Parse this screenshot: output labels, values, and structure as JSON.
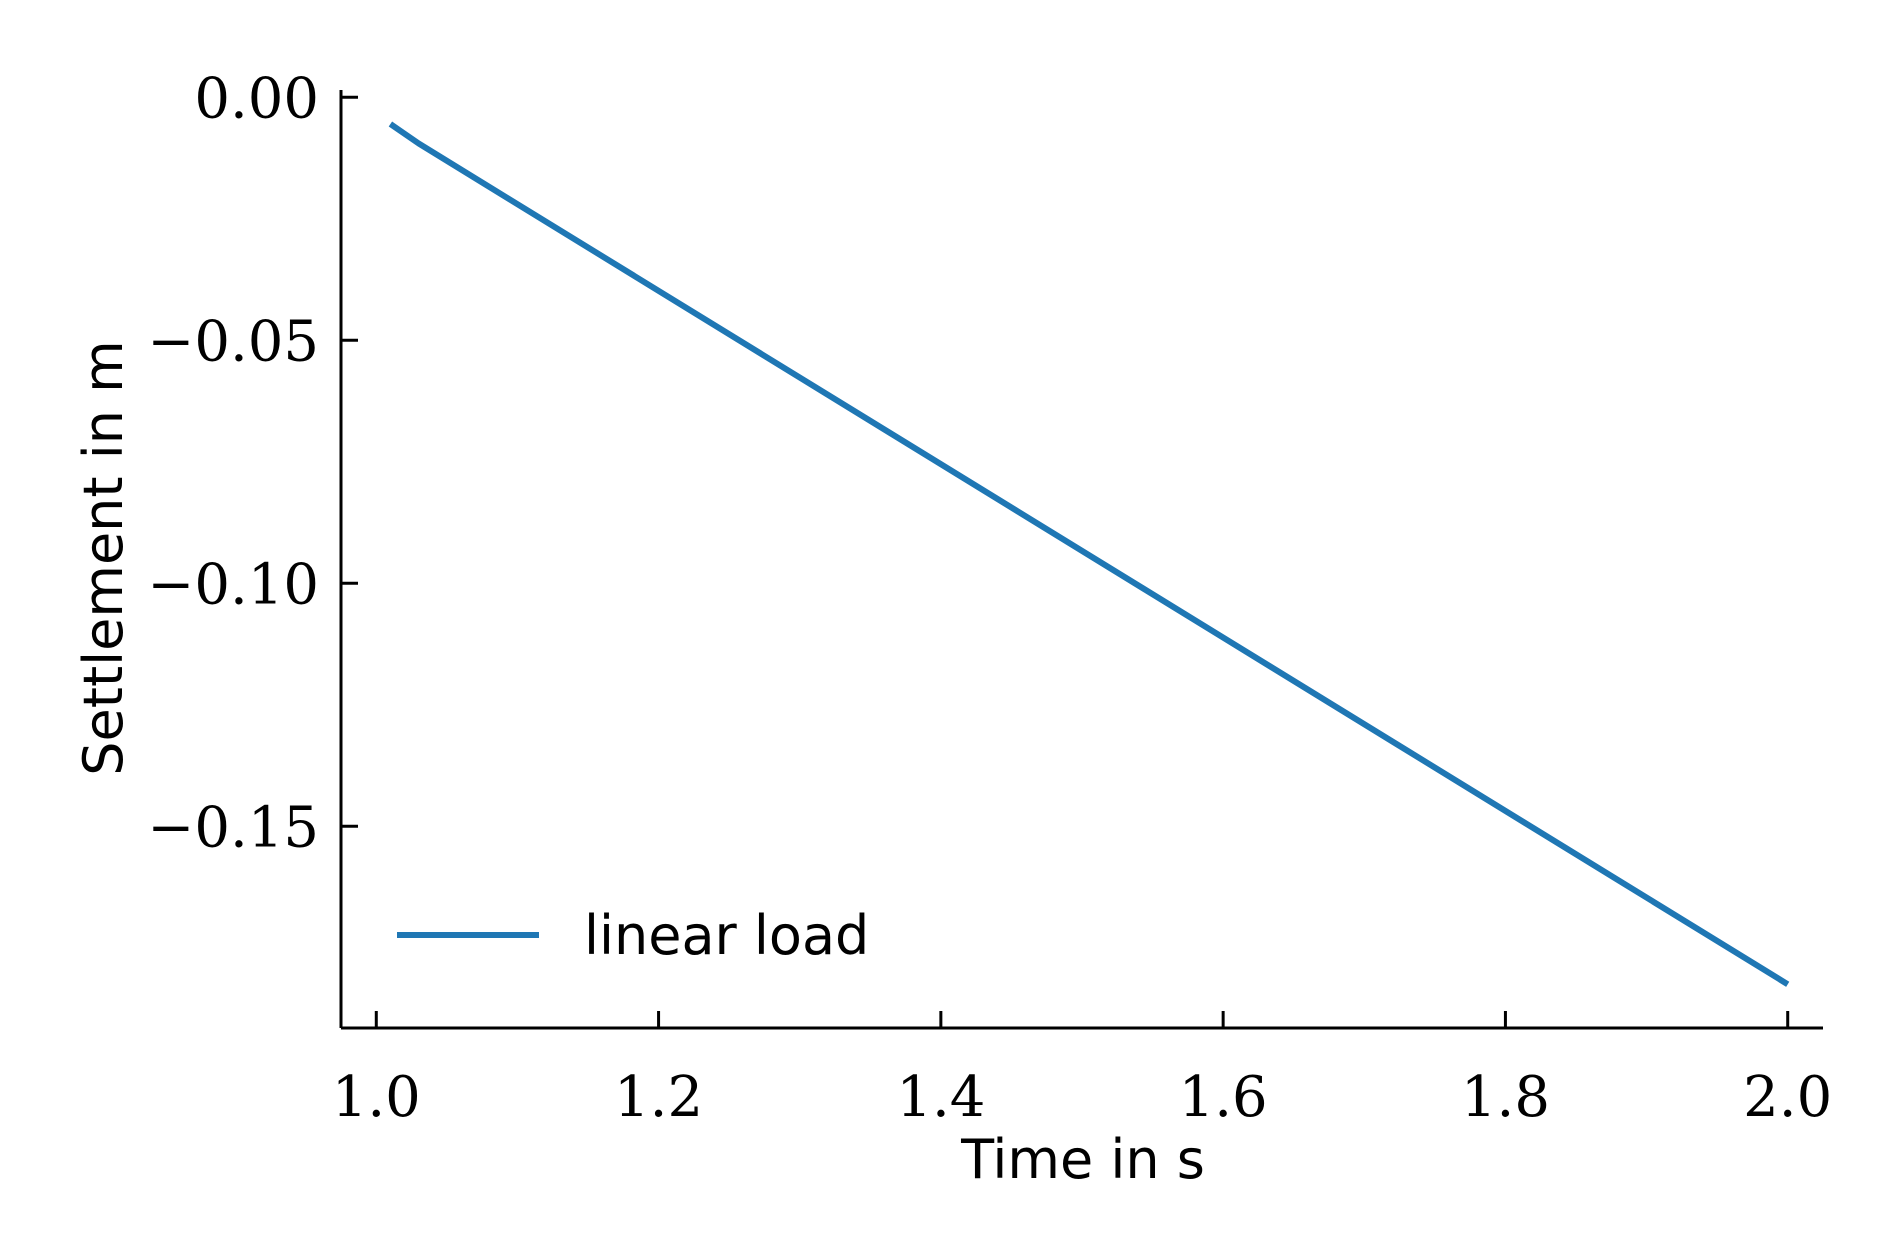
{
  "chart_data": {
    "type": "line",
    "title": "",
    "xlabel": "Time in s",
    "ylabel": "Settlement in m",
    "xlim": [
      0.975,
      2.025
    ],
    "ylim": [
      -0.1915,
      0.0015
    ],
    "x_ticks": [
      1.0,
      1.2,
      1.4,
      1.6,
      1.8,
      2.0
    ],
    "x_tick_labels": [
      "1.0",
      "1.2",
      "1.4",
      "1.6",
      "1.8",
      "2.0"
    ],
    "y_ticks": [
      0.0,
      -0.05,
      -0.1,
      -0.15
    ],
    "y_tick_labels": [
      "0.00",
      "−0.05",
      "−0.10",
      "−0.15"
    ],
    "grid": false,
    "legend_position": "lower-left",
    "series": [
      {
        "name": "linear load",
        "color": "#1f77b4",
        "x": [
          1.01,
          1.03,
          2.0
        ],
        "y": [
          -0.0055,
          -0.0095,
          -0.1825
        ]
      }
    ]
  }
}
